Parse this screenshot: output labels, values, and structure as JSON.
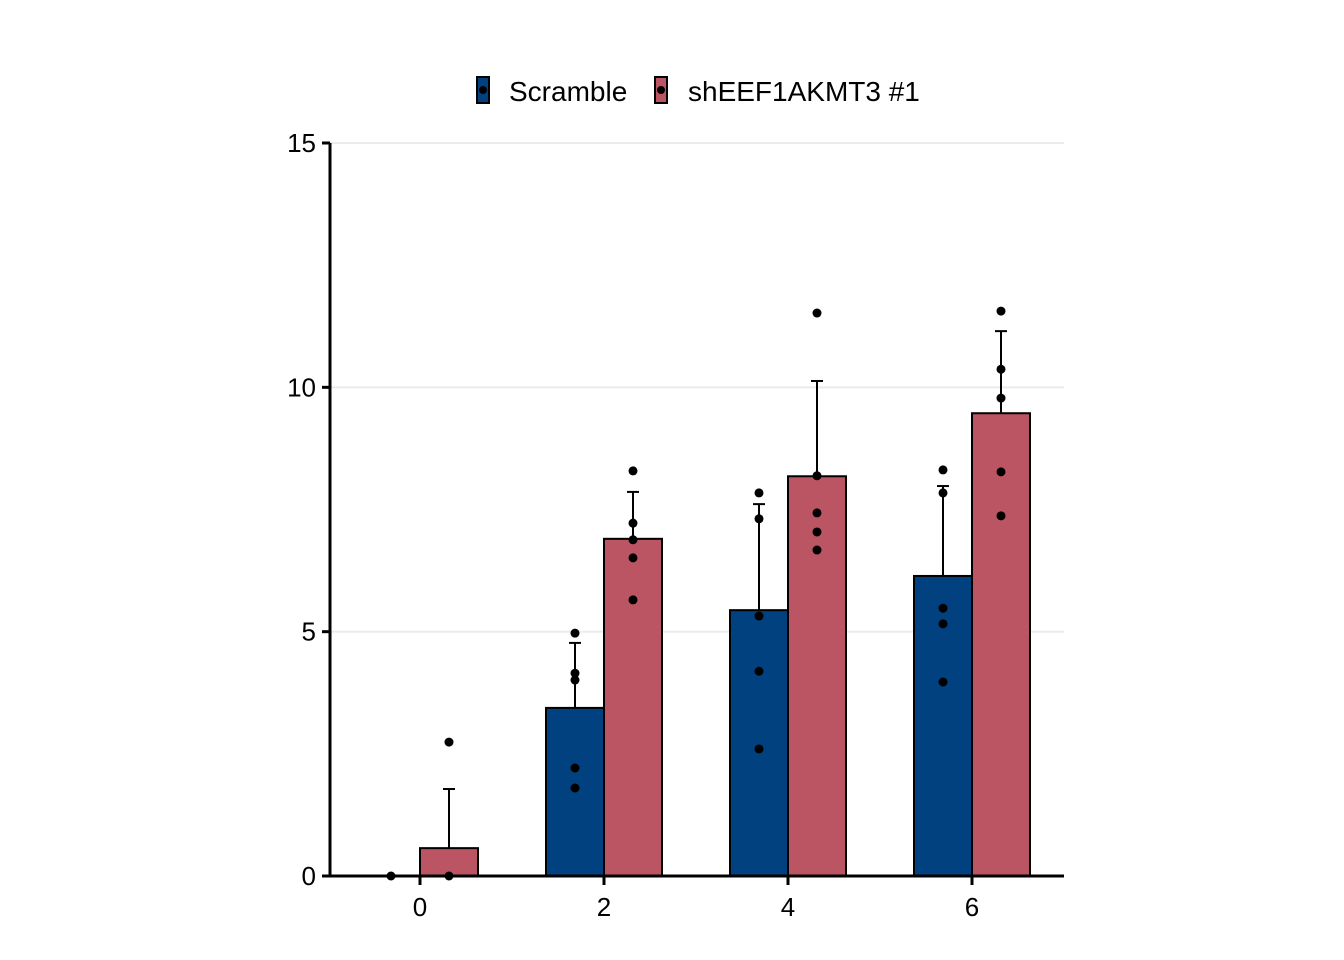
{
  "chart_data": {
    "type": "bar",
    "title": "",
    "xlabel": "",
    "ylabel": "",
    "categories": [
      "0",
      "2",
      "4",
      "6"
    ],
    "ylim": [
      0,
      15
    ],
    "yticks": [
      0,
      5,
      10,
      15
    ],
    "grid": "horizontal",
    "legend": {
      "position": "top",
      "entries": [
        "Scramble",
        "shEEF1AKMT3 #1"
      ]
    },
    "series": [
      {
        "name": "Scramble",
        "color": "#01417F",
        "values": [
          0,
          3.44,
          5.44,
          6.14
        ],
        "error_upper": [
          0,
          4.77,
          7.61,
          7.98
        ],
        "points": [
          [
            0
          ],
          [
            4.97,
            4.15,
            4.01,
            2.21,
            1.8
          ],
          [
            7.84,
            7.31,
            5.32,
            4.19,
            2.6
          ],
          [
            8.31,
            7.84,
            5.48,
            5.16,
            3.97
          ]
        ]
      },
      {
        "name": "shEEF1AKMT3 #1",
        "color": "#BC5563",
        "values": [
          0.57,
          6.9,
          8.18,
          9.47
        ],
        "error_upper": [
          1.78,
          7.86,
          10.13,
          11.15
        ],
        "points": [
          [
            2.74,
            0
          ],
          [
            8.29,
            7.22,
            6.88,
            6.51,
            5.65
          ],
          [
            11.52,
            8.19,
            7.43,
            7.04,
            6.67
          ],
          [
            11.56,
            10.37,
            9.78,
            8.27,
            7.37
          ]
        ]
      }
    ]
  }
}
